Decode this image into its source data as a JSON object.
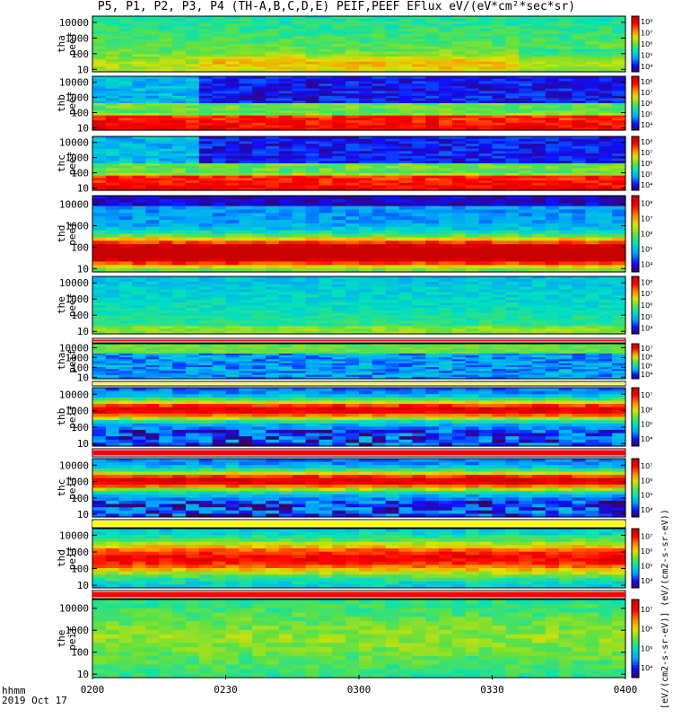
{
  "title": "P5, P1, P2, P3, P4 (TH-A,B,C,D,E) PEIF,PEEF EFlux eV/(eV*cm²*sec*sr)",
  "footer": {
    "line1": "hhmm",
    "line2": "2019 Oct 17"
  },
  "colorbar_unit_text": "[eV/(cm2-s-sr-eV)] (eV/(cm2-s-sr-eV))",
  "colors": {
    "scale": [
      "#3a0060",
      "#1010ff",
      "#00a0ff",
      "#00e0c0",
      "#60e040",
      "#e0e000",
      "#ff8000",
      "#ff0000",
      "#c80000"
    ],
    "separator_red": "#ff0000",
    "separator_yellow": "#ffff00"
  },
  "chart_data": {
    "type": "heatmap",
    "x_axis": {
      "ticks": [
        "0200",
        "0230",
        "0300",
        "0330",
        "0400"
      ],
      "range": [
        "02:00",
        "04:00"
      ]
    },
    "y_axis": {
      "scale": "log",
      "unit": "eV",
      "ticks": [
        "10",
        "100",
        "1000",
        "10000"
      ],
      "range": [
        7,
        25000
      ]
    },
    "panels": [
      {
        "label": [
          "tha",
          "peef"
        ],
        "species": "electron",
        "cbar_ticks": [
          "10⁴",
          "10⁵",
          "10⁶",
          "10⁷",
          "10⁸"
        ],
        "pattern": "ion-like"
      },
      {
        "label": [
          "thb",
          "peef"
        ],
        "species": "electron",
        "cbar_ticks": [
          "10⁴",
          "10⁵",
          "10⁶",
          "10⁷",
          "10⁸"
        ],
        "pattern": "bright-low"
      },
      {
        "label": [
          "thc",
          "peef"
        ],
        "species": "electron",
        "cbar_ticks": [
          "10⁴",
          "10⁵",
          "10⁶",
          "10⁷",
          "10⁸"
        ],
        "pattern": "bright-low"
      },
      {
        "label": [
          "thd",
          "peef"
        ],
        "species": "electron",
        "cbar_ticks": [
          "10⁴",
          "10⁵",
          "10⁶",
          "10⁷",
          "10⁸"
        ],
        "pattern": "mid"
      },
      {
        "label": [
          "the",
          "peef"
        ],
        "species": "electron",
        "cbar_ticks": [
          "10⁴",
          "10⁵",
          "10⁶",
          "10⁷",
          "10⁸"
        ],
        "pattern": "faint"
      },
      {
        "label": [
          "tha",
          "peif"
        ],
        "species": "ion",
        "cbar_ticks": [
          "10⁴",
          "10⁵",
          "10⁶",
          "10⁷"
        ],
        "pattern": "ion-top"
      },
      {
        "label": [
          "thb",
          "peif"
        ],
        "species": "ion",
        "cbar_ticks": [
          "10⁴",
          "10⁵",
          "10⁶",
          "10⁷"
        ],
        "pattern": "ion-mid"
      },
      {
        "label": [
          "thc",
          "peif"
        ],
        "species": "ion",
        "cbar_ticks": [
          "10⁴",
          "10⁵",
          "10⁶",
          "10⁷"
        ],
        "pattern": "ion-mid"
      },
      {
        "label": [
          "thd",
          "peif"
        ],
        "species": "ion",
        "cbar_ticks": [
          "10⁴",
          "10⁵",
          "10⁶",
          "10⁷"
        ],
        "pattern": "ion-wide"
      },
      {
        "label": [
          "the",
          "peif"
        ],
        "species": "ion",
        "cbar_ticks": [
          "10⁴",
          "10⁵",
          "10⁶",
          "10⁷"
        ],
        "pattern": "ion-low"
      }
    ]
  }
}
